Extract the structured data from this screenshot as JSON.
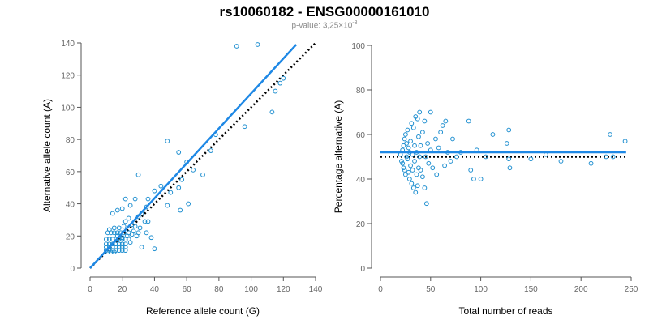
{
  "title": "rs10060182 - ENSG00000161010",
  "subtitle": {
    "prefix": "p-value: 3,25×10",
    "exponent": "-3"
  },
  "colors": {
    "points": "#1f8fd0",
    "fit_line": "#1e88e5",
    "reference_line": "#000000",
    "axis": "#555555"
  },
  "chart_data": [
    {
      "type": "scatter",
      "xlabel": "Reference allele count (G)",
      "ylabel": "Alternative allele count (A)",
      "xlim": [
        0,
        140
      ],
      "ylim": [
        0,
        140
      ],
      "xticks": [
        0,
        20,
        40,
        60,
        80,
        100,
        120,
        140
      ],
      "yticks": [
        0,
        20,
        40,
        60,
        80,
        100,
        120,
        140
      ],
      "grid": false,
      "points": [
        [
          91,
          138
        ],
        [
          104,
          139
        ],
        [
          118,
          115
        ],
        [
          120,
          118
        ],
        [
          115,
          110
        ],
        [
          113,
          97
        ],
        [
          96,
          88
        ],
        [
          78,
          83
        ],
        [
          75,
          73
        ],
        [
          48,
          79
        ],
        [
          55,
          72
        ],
        [
          60,
          66
        ],
        [
          64,
          61
        ],
        [
          70,
          58
        ],
        [
          61,
          40
        ],
        [
          30,
          58
        ],
        [
          44,
          51
        ],
        [
          50,
          47
        ],
        [
          55,
          50
        ],
        [
          57,
          55
        ],
        [
          48,
          39
        ],
        [
          56,
          36
        ],
        [
          40,
          48
        ],
        [
          36,
          43
        ],
        [
          35,
          38
        ],
        [
          28,
          43
        ],
        [
          22,
          43
        ],
        [
          25,
          39
        ],
        [
          20,
          37
        ],
        [
          17,
          36
        ],
        [
          14,
          34
        ],
        [
          32,
          34
        ],
        [
          30,
          32
        ],
        [
          34,
          29
        ],
        [
          36,
          29
        ],
        [
          24,
          31
        ],
        [
          22,
          29
        ],
        [
          26,
          27
        ],
        [
          21,
          26
        ],
        [
          18,
          25
        ],
        [
          15,
          25
        ],
        [
          12,
          24
        ],
        [
          28,
          26
        ],
        [
          30,
          22
        ],
        [
          35,
          22
        ],
        [
          38,
          19
        ],
        [
          32,
          13
        ],
        [
          40,
          12
        ],
        [
          11,
          22
        ],
        [
          13,
          22
        ],
        [
          15,
          22
        ],
        [
          17,
          22
        ],
        [
          19,
          22
        ],
        [
          21,
          22
        ],
        [
          10,
          18
        ],
        [
          12,
          18
        ],
        [
          14,
          18
        ],
        [
          16,
          18
        ],
        [
          18,
          18
        ],
        [
          20,
          18
        ],
        [
          22,
          18
        ],
        [
          24,
          18
        ],
        [
          10,
          15
        ],
        [
          12,
          15
        ],
        [
          14,
          15
        ],
        [
          16,
          15
        ],
        [
          18,
          15
        ],
        [
          20,
          15
        ],
        [
          22,
          15
        ],
        [
          25,
          16
        ],
        [
          10,
          13
        ],
        [
          12,
          13
        ],
        [
          14,
          13
        ],
        [
          16,
          13
        ],
        [
          18,
          13
        ],
        [
          20,
          13
        ],
        [
          22,
          13
        ],
        [
          10,
          11
        ],
        [
          12,
          11
        ],
        [
          14,
          11
        ],
        [
          16,
          11
        ],
        [
          18,
          11
        ],
        [
          20,
          11
        ],
        [
          22,
          11
        ],
        [
          11,
          10
        ],
        [
          13,
          10
        ],
        [
          15,
          10
        ],
        [
          20,
          19
        ],
        [
          23,
          20
        ],
        [
          19,
          17
        ],
        [
          26,
          21
        ],
        [
          29,
          20
        ],
        [
          27,
          23
        ],
        [
          31,
          25
        ],
        [
          24,
          22
        ],
        [
          17,
          20
        ]
      ],
      "fit_line": [
        [
          0,
          0
        ],
        [
          128,
          139
        ]
      ],
      "reference_line": [
        [
          0,
          0
        ],
        [
          140,
          140
        ]
      ]
    },
    {
      "type": "scatter",
      "xlabel": "Total number of reads",
      "ylabel": "Percentage alternative (A)",
      "xlim": [
        0,
        250
      ],
      "ylim": [
        0,
        100
      ],
      "xticks": [
        0,
        50,
        100,
        150,
        200,
        250
      ],
      "yticks": [
        0,
        20,
        40,
        60,
        80,
        100
      ],
      "grid": false,
      "points": [
        [
          20,
          51
        ],
        [
          21,
          48
        ],
        [
          22,
          53
        ],
        [
          22,
          47
        ],
        [
          23,
          55
        ],
        [
          23,
          45
        ],
        [
          24,
          58
        ],
        [
          24,
          44
        ],
        [
          25,
          60
        ],
        [
          25,
          42
        ],
        [
          26,
          56
        ],
        [
          26,
          50
        ],
        [
          27,
          62
        ],
        [
          27,
          49
        ],
        [
          28,
          43
        ],
        [
          28,
          54
        ],
        [
          29,
          40
        ],
        [
          29,
          52
        ],
        [
          30,
          57
        ],
        [
          30,
          46
        ],
        [
          31,
          65
        ],
        [
          31,
          38
        ],
        [
          32,
          51
        ],
        [
          32,
          44
        ],
        [
          33,
          63
        ],
        [
          33,
          36
        ],
        [
          34,
          55
        ],
        [
          34,
          48
        ],
        [
          35,
          68
        ],
        [
          35,
          34
        ],
        [
          36,
          52
        ],
        [
          36,
          42
        ],
        [
          37,
          67
        ],
        [
          37,
          37
        ],
        [
          38,
          59
        ],
        [
          38,
          45
        ],
        [
          39,
          70
        ],
        [
          39,
          50
        ],
        [
          40,
          55
        ],
        [
          40,
          44
        ],
        [
          42,
          61
        ],
        [
          42,
          41
        ],
        [
          44,
          66
        ],
        [
          44,
          36
        ],
        [
          45,
          50
        ],
        [
          46,
          29
        ],
        [
          47,
          56
        ],
        [
          48,
          47
        ],
        [
          50,
          70
        ],
        [
          50,
          53
        ],
        [
          52,
          45
        ],
        [
          55,
          58
        ],
        [
          56,
          42
        ],
        [
          58,
          54
        ],
        [
          60,
          61
        ],
        [
          62,
          64
        ],
        [
          64,
          46
        ],
        [
          65,
          66
        ],
        [
          67,
          52
        ],
        [
          70,
          48
        ],
        [
          72,
          58
        ],
        [
          76,
          50
        ],
        [
          80,
          52
        ],
        [
          88,
          66
        ],
        [
          90,
          44
        ],
        [
          93,
          40
        ],
        [
          96,
          53
        ],
        [
          100,
          40
        ],
        [
          105,
          50
        ],
        [
          112,
          60
        ],
        [
          126,
          56
        ],
        [
          128,
          62
        ],
        [
          128,
          49
        ],
        [
          129,
          45
        ],
        [
          150,
          49
        ],
        [
          165,
          51
        ],
        [
          180,
          48
        ],
        [
          210,
          47
        ],
        [
          225,
          50
        ],
        [
          229,
          60
        ],
        [
          232,
          50
        ],
        [
          244,
          57
        ]
      ],
      "fit_line": [
        [
          0,
          52
        ],
        [
          245,
          52
        ]
      ],
      "reference_line": [
        [
          0,
          50
        ],
        [
          245,
          50
        ]
      ]
    }
  ]
}
